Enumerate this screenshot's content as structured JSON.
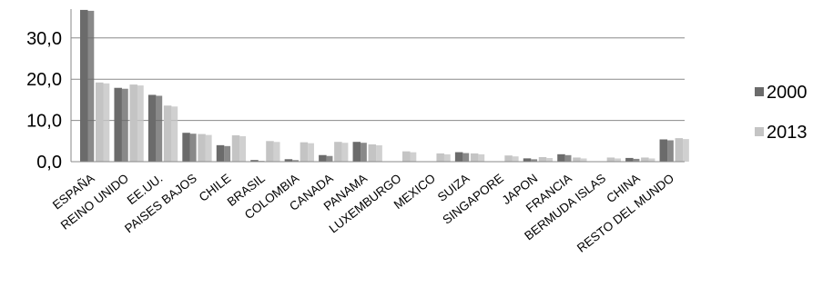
{
  "chart_data": {
    "type": "bar",
    "title": "",
    "xlabel": "",
    "ylabel": "",
    "ylim": [
      0,
      37
    ],
    "yticks": [
      0,
      10,
      20,
      30
    ],
    "ytick_labels": [
      "0,0",
      "10,0",
      "20,0",
      "30,0"
    ],
    "grid": true,
    "legend_position": "right",
    "categories": [
      "ESPAÑA",
      "REINO UNIDO",
      "EE.UU.",
      "PAISES BAJOS",
      "CHILE",
      "BRASIL",
      "COLOMBIA",
      "CANADA",
      "PANAMA",
      "LUXEMBURGO",
      "MEXICO",
      "SUIZA",
      "SINGAPORE",
      "JAPON",
      "FRANCIA",
      "BERMUDA ISLAS",
      "CHINA",
      "RESTO DEL MUNDO"
    ],
    "series": [
      {
        "name": "2000",
        "color": "#6b6b6b",
        "values": [
          36.8,
          17.9,
          16.2,
          7.0,
          4.0,
          0.4,
          0.6,
          1.6,
          4.8,
          0.0,
          0.0,
          2.3,
          0.0,
          0.8,
          1.8,
          0.0,
          0.9,
          5.4
        ]
      },
      {
        "name": "2013",
        "color": "#c4c4c4",
        "values": [
          19.2,
          18.7,
          13.6,
          6.7,
          6.4,
          5.0,
          4.7,
          4.8,
          4.2,
          2.5,
          2.0,
          2.0,
          1.5,
          1.1,
          1.0,
          1.0,
          1.0,
          5.7
        ]
      }
    ]
  }
}
